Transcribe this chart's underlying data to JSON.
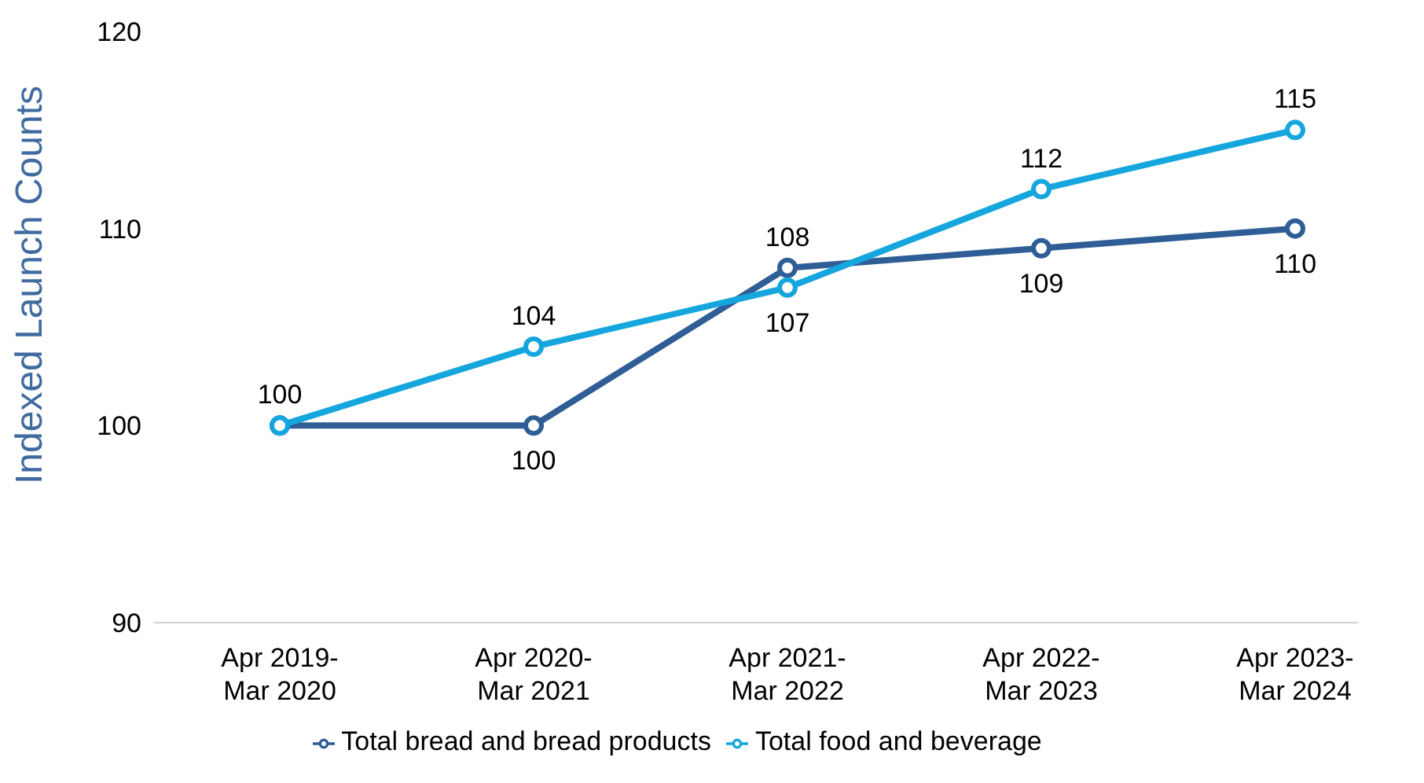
{
  "chart_data": {
    "type": "line",
    "ylabel": "Indexed Launch Counts",
    "categories": [
      "Apr 2019-Mar 2020",
      "Apr 2020-Mar 2021",
      "Apr 2021-Mar 2022",
      "Apr 2022-Mar 2023",
      "Apr 2023-Mar 2024"
    ],
    "series": [
      {
        "name": "Total bread and bread products",
        "color": "#2f5d95",
        "values": [
          100,
          100,
          108,
          109,
          110
        ],
        "value_labels": [
          null,
          "100",
          "108",
          "109",
          "110"
        ]
      },
      {
        "name": "Total food and beverage",
        "color": "#16a6de",
        "values": [
          100,
          104,
          107,
          112,
          115
        ],
        "value_labels": [
          "100",
          "104",
          "107",
          "112",
          "115"
        ]
      }
    ],
    "ylim": [
      90,
      120
    ],
    "yticks": [
      90,
      100,
      110,
      120
    ],
    "grid": false,
    "legend": "bottom",
    "marker": "circle",
    "line_style": "solid"
  }
}
